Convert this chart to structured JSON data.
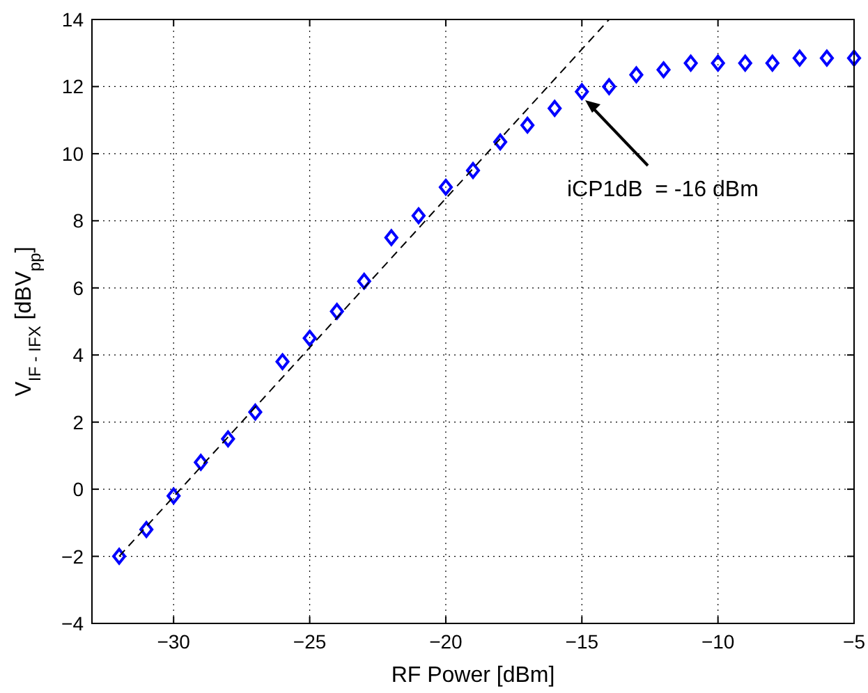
{
  "chart_data": {
    "type": "scatter",
    "xlabel": "RF Power [dBm]",
    "ylabel": "V$_{IF - IFX}$ [dBV$_{pp}$]",
    "xlim": [
      -33,
      -5
    ],
    "ylim": [
      -4,
      14
    ],
    "xticks": [
      -30,
      -25,
      -20,
      -15,
      -10,
      -5
    ],
    "yticks": [
      -4,
      -2,
      0,
      2,
      4,
      6,
      8,
      10,
      12,
      14
    ],
    "grid": true,
    "marker": "diamond",
    "series": [
      {
        "color": "#0000ff",
        "x": [
          -32,
          -31,
          -30,
          -29,
          -28,
          -27,
          -26,
          -25,
          -24,
          -23,
          -22,
          -21,
          -20,
          -19,
          -18,
          -17,
          -16,
          -15,
          -14,
          -13,
          -12,
          -11,
          -10,
          -9,
          -8,
          -7,
          -6,
          -5
        ],
        "values": [
          -2,
          -1.2,
          -0.2,
          0.8,
          1.5,
          2.3,
          3.8,
          4.5,
          5.3,
          6.2,
          7.5,
          8.15,
          9.0,
          9.5,
          10.35,
          10.85,
          11.35,
          11.85,
          12.0,
          12.35,
          12.5,
          12.7,
          12.7,
          12.7,
          12.7,
          12.85,
          12.85,
          12.85
        ]
      },
      {
        "type": "line",
        "color": "#000000",
        "line_style": "dashed",
        "marker": "none",
        "x": [
          -32,
          -14
        ],
        "values": [
          -2,
          14
        ]
      }
    ],
    "annotations": [
      "iCP1dB  = -16 dBm"
    ]
  }
}
